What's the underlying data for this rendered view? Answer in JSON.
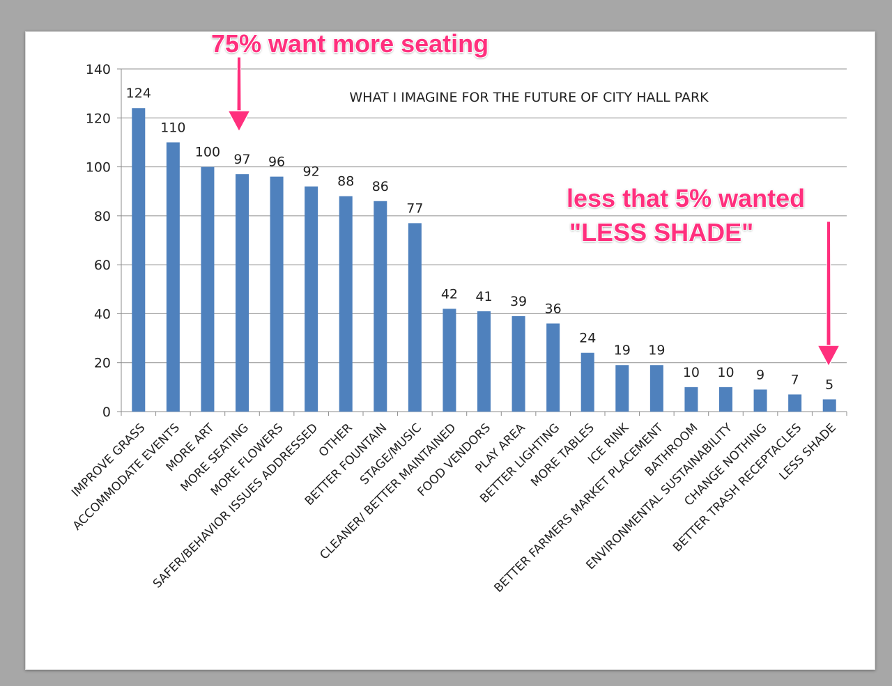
{
  "chart_data": {
    "type": "bar",
    "title": "WHAT I IMAGINE FOR THE FUTURE OF CITY HALL PARK",
    "xlabel": "",
    "ylabel": "",
    "ylim": [
      0,
      140
    ],
    "yticks": [
      0,
      20,
      40,
      60,
      80,
      100,
      120,
      140
    ],
    "grid": true,
    "legend": "none",
    "bar_color": "#4f81bd",
    "categories": [
      "IMPROVE GRASS",
      "ACCOMMODATE EVENTS",
      "MORE ART",
      "MORE SEATING",
      "MORE FLOWERS",
      "SAFER/BEHAVIOR ISSUES ADDRESSED",
      "OTHER",
      "BETTER FOUNTAIN",
      "STAGE/MUSIC",
      "CLEANER/ BETTER MAINTAINED",
      "FOOD VENDORS",
      "PLAY AREA",
      "BETTER LIGHTING",
      "MORE TABLES",
      "ICE RINK",
      "BETTER FARMERS MARKET PLACEMENT",
      "BATHROOM",
      "ENVIRONMENTAL SUSTAINABILITY",
      "CHANGE NOTHING",
      "BETTER TRASH RECEPTACLES",
      "LESS SHADE"
    ],
    "values": [
      124,
      110,
      100,
      97,
      96,
      92,
      88,
      86,
      77,
      42,
      41,
      39,
      36,
      24,
      19,
      19,
      10,
      10,
      9,
      7,
      5
    ]
  },
  "annotations": {
    "seating": "75% want more seating",
    "shade_line1": "less that 5% wanted",
    "shade_line2": "\"LESS SHADE\"",
    "color": "#ff2f7d"
  }
}
